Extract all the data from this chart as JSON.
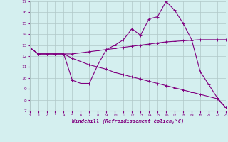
{
  "xlabel": "Windchill (Refroidissement éolien,°C)",
  "x": [
    0,
    1,
    2,
    3,
    4,
    5,
    6,
    7,
    8,
    9,
    10,
    11,
    12,
    13,
    14,
    15,
    16,
    17,
    18,
    19,
    20,
    21,
    22,
    23
  ],
  "line1": [
    12.8,
    12.2,
    12.2,
    12.2,
    12.2,
    9.8,
    9.5,
    9.5,
    11.2,
    12.6,
    13.0,
    13.5,
    14.5,
    13.9,
    15.4,
    15.6,
    17.0,
    16.2,
    15.0,
    13.5,
    10.6,
    9.4,
    8.2,
    7.3
  ],
  "line2": [
    12.8,
    12.2,
    12.2,
    12.2,
    12.2,
    12.2,
    12.3,
    12.4,
    12.5,
    12.6,
    12.7,
    12.8,
    12.9,
    13.0,
    13.1,
    13.2,
    13.3,
    13.35,
    13.4,
    13.45,
    13.5,
    13.5,
    13.5,
    13.5
  ],
  "line3": [
    12.8,
    12.2,
    12.2,
    12.2,
    12.2,
    11.8,
    11.5,
    11.2,
    11.0,
    10.8,
    10.5,
    10.3,
    10.1,
    9.9,
    9.7,
    9.5,
    9.3,
    9.1,
    8.9,
    8.7,
    8.5,
    8.3,
    8.1,
    7.3
  ],
  "line_color": "#800080",
  "bg_color": "#d4efef",
  "grid_color": "#b0c8c8",
  "ylim": [
    7,
    17
  ],
  "xlim": [
    0,
    23
  ],
  "yticks": [
    7,
    8,
    9,
    10,
    11,
    12,
    13,
    14,
    15,
    16,
    17
  ],
  "xticks": [
    0,
    1,
    2,
    3,
    4,
    5,
    6,
    7,
    8,
    9,
    10,
    11,
    12,
    13,
    14,
    15,
    16,
    17,
    18,
    19,
    20,
    21,
    22,
    23
  ]
}
